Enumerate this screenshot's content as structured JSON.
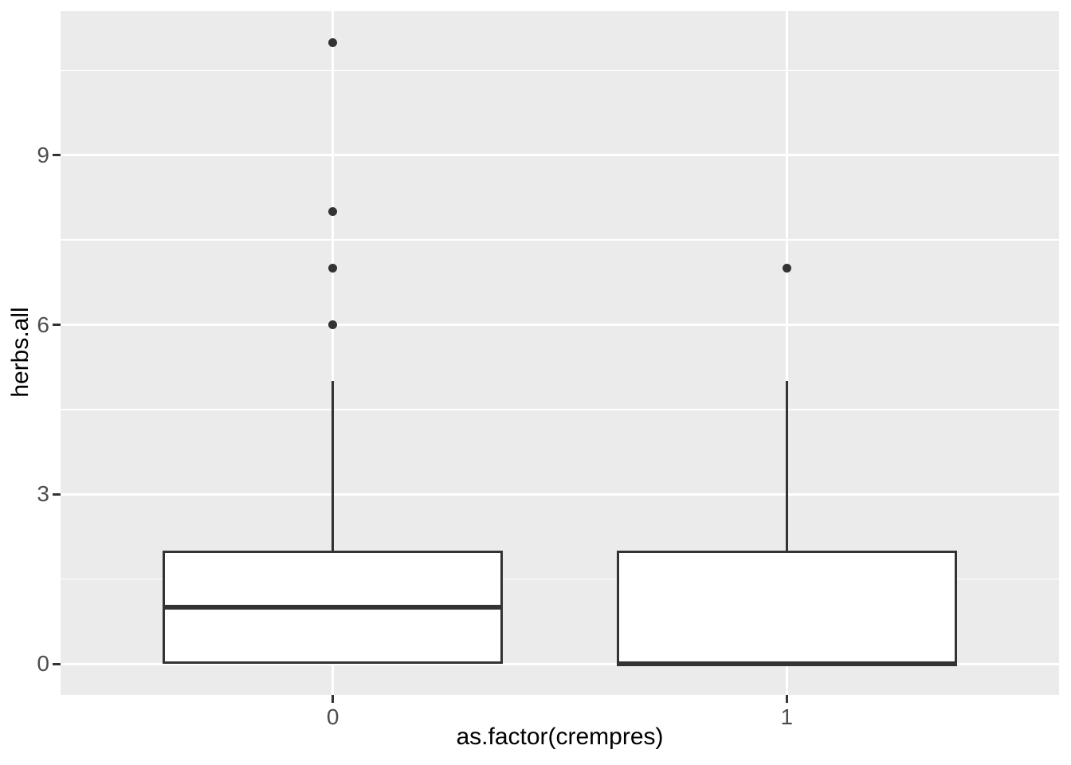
{
  "chart_data": {
    "type": "boxplot",
    "title": "",
    "xlabel": "as.factor(crempres)",
    "ylabel": "herbs.all",
    "categories": [
      "0",
      "1"
    ],
    "y_ticks": [
      0,
      3,
      6,
      9
    ],
    "y_tick_labels": [
      "0",
      "3",
      "6",
      "9"
    ],
    "y_minor_ticks": [
      1.5,
      4.5,
      7.5,
      10.5
    ],
    "ylim": [
      -0.55,
      11.55
    ],
    "grid": true,
    "legend": false,
    "series": [
      {
        "category": "0",
        "lower_whisker": 0,
        "q1": 0,
        "median": 1,
        "q3": 2,
        "upper_whisker": 5,
        "outliers": [
          6,
          7,
          8,
          11
        ]
      },
      {
        "category": "1",
        "lower_whisker": 0,
        "q1": 0,
        "median": 0,
        "q3": 2,
        "upper_whisker": 5,
        "outliers": [
          7
        ]
      }
    ],
    "colors": {
      "panel_background": "#EBEBEB",
      "gridline": "#FFFFFF",
      "box_stroke": "#333333",
      "box_fill": "#FFFFFF",
      "outlier": "#333333",
      "tick_mark": "#333333",
      "tick_label": "#4D4D4D",
      "axis_title": "#000000",
      "figure_background": "#FFFFFF"
    }
  }
}
